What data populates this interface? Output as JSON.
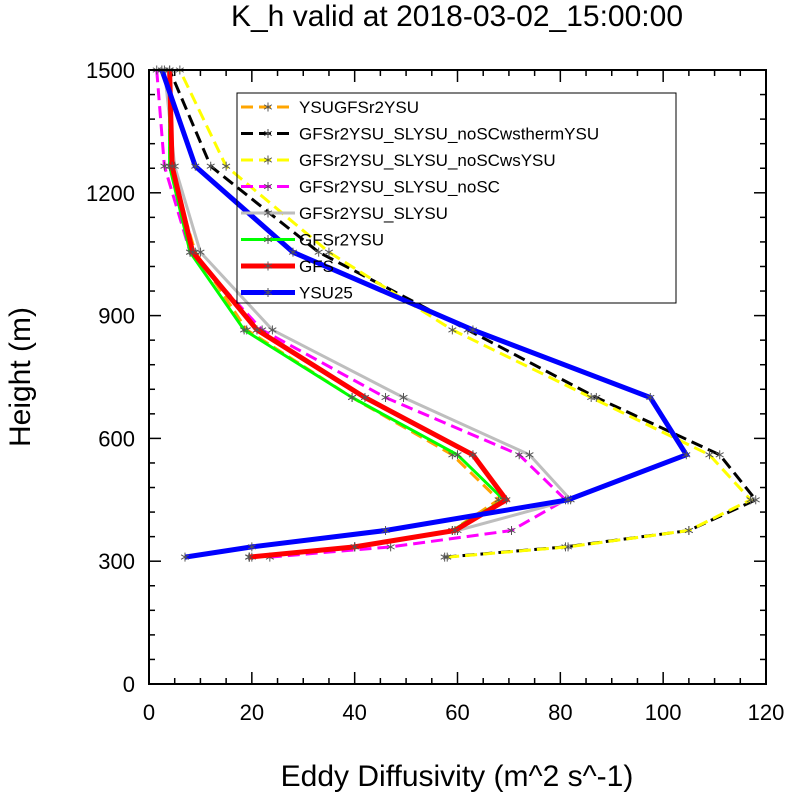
{
  "chart_data": {
    "type": "line",
    "title": "K_h valid at 2018-03-02_15:00:00",
    "xlabel": "Eddy Diffusivity (m^2 s^-1)",
    "ylabel": "Height (m)",
    "xlim": [
      0,
      120
    ],
    "ylim": [
      0,
      1500
    ],
    "xticks": [
      0,
      20,
      40,
      60,
      80,
      100,
      120
    ],
    "yticks": [
      0,
      300,
      600,
      900,
      1200,
      1500
    ],
    "grid": false,
    "legend_position": "top-center",
    "series": [
      {
        "name": "YSUGFSr2YSU",
        "color": "#ffa500",
        "dash": "dashed",
        "x": [
          19.5,
          40,
          59,
          68,
          59,
          39.5,
          19,
          9,
          4,
          4
        ],
        "y": [
          310,
          335,
          375,
          450,
          560,
          700,
          865,
          1055,
          1265,
          1500
        ]
      },
      {
        "name": "GFSr2YSU_SLYSU_noSCwsthermYSU",
        "color": "#000000",
        "dash": "dashed",
        "x": [
          57.5,
          81,
          105,
          118,
          111,
          87,
          62,
          33,
          12,
          4
        ],
        "y": [
          310,
          335,
          375,
          450,
          560,
          700,
          865,
          1055,
          1265,
          1500
        ]
      },
      {
        "name": "GFSr2YSU_SLYSU_noSCwsYSU",
        "color": "#ffff00",
        "dash": "dashed",
        "x": [
          58,
          81.5,
          105,
          117,
          109,
          86,
          59,
          35,
          15,
          6
        ],
        "y": [
          310,
          335,
          375,
          450,
          560,
          700,
          865,
          1055,
          1265,
          1500
        ]
      },
      {
        "name": "GFSr2YSU_SLYSU_noSC",
        "color": "#ff00ff",
        "dash": "dashed",
        "x": [
          23.5,
          47,
          70.5,
          81,
          72,
          46,
          22,
          8,
          3,
          1.5
        ],
        "y": [
          310,
          335,
          375,
          450,
          560,
          700,
          865,
          1055,
          1265,
          1500
        ]
      },
      {
        "name": "GFSr2YSU_SLYSU",
        "color": "#bebebe",
        "dash": "solid",
        "x": [
          20,
          40,
          60,
          82,
          74,
          49.5,
          24,
          10,
          5,
          3
        ],
        "y": [
          310,
          335,
          375,
          450,
          560,
          700,
          865,
          1055,
          1265,
          1500
        ]
      },
      {
        "name": "GFSr2YSU",
        "color": "#00ff00",
        "dash": "solid",
        "x": [
          19.5,
          40,
          59,
          69,
          60,
          39.5,
          18.5,
          8,
          4,
          4
        ],
        "y": [
          310,
          335,
          375,
          450,
          560,
          700,
          865,
          1055,
          1265,
          1500
        ]
      },
      {
        "name": "GFS",
        "color": "#ff0000",
        "dash": "solid",
        "x": [
          19.5,
          40,
          59.5,
          69.5,
          63,
          42,
          21,
          8.5,
          4.5,
          4
        ],
        "y": [
          310,
          335,
          375,
          450,
          560,
          700,
          865,
          1055,
          1265,
          1500
        ]
      },
      {
        "name": "YSU25",
        "color": "#0000ff",
        "dash": "solid",
        "x": [
          7,
          20,
          46,
          81.5,
          104.5,
          97.5,
          63,
          28,
          9,
          2.5
        ],
        "y": [
          310,
          335,
          375,
          450,
          560,
          700,
          865,
          1055,
          1265,
          1500
        ]
      }
    ]
  }
}
